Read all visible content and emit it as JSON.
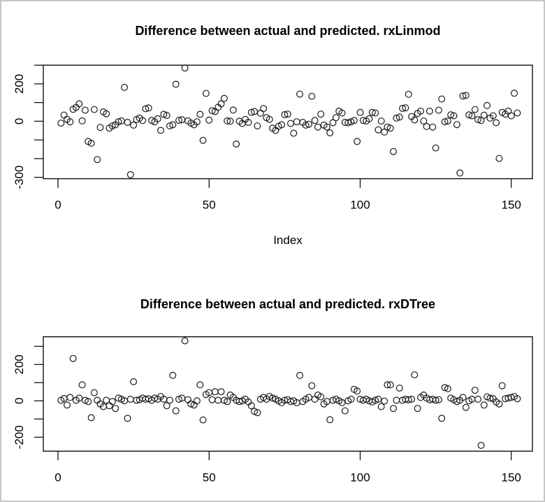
{
  "page": {
    "background_color": "#ffffff",
    "frame_border_color": "#c6c6c6",
    "plot_line_color": "#000000"
  },
  "chart_data": [
    {
      "id": "rxlinmod",
      "type": "scatter",
      "title": "Difference between actual and predicted. rxLinmod",
      "xlabel": "Index",
      "ylabel": "",
      "marker": "open-circle",
      "x_ticks": [
        0,
        50,
        100,
        150
      ],
      "x_tick_labels": [
        "0",
        "50",
        "100",
        "150"
      ],
      "y_ticks": [
        300,
        200,
        100,
        0,
        -100,
        -200,
        -300
      ],
      "y_tick_labels_shown": [
        {
          "value": 200,
          "label": "200"
        },
        {
          "value": 0,
          "label": "0"
        },
        {
          "value": -300,
          "label": "-300"
        }
      ],
      "xlim": [
        -4.9,
        157.1
      ],
      "ylim": [
        -307,
        301
      ],
      "grid": false,
      "legend": "none",
      "x": "index 1..152",
      "y_values": [
        -10,
        33,
        10,
        -3,
        64,
        74,
        93,
        2,
        59,
        -108,
        -118,
        63,
        -205,
        -33,
        50,
        40,
        -37,
        -25,
        -19,
        -3,
        2,
        181,
        -6,
        -286,
        -21,
        9,
        17,
        4,
        67,
        71,
        4,
        -3,
        13,
        -49,
        37,
        31,
        -25,
        -19,
        198,
        5,
        8,
        285,
        2,
        -10,
        -19,
        -3,
        37,
        -102,
        149,
        6,
        56,
        52,
        75,
        93,
        122,
        2,
        0,
        60,
        -122,
        0,
        -12,
        10,
        -6,
        47,
        52,
        -25,
        43,
        68,
        19,
        10,
        -37,
        -49,
        -27,
        -19,
        35,
        38,
        -12,
        -64,
        -3,
        145,
        -6,
        -21,
        -16,
        134,
        4,
        -31,
        38,
        -21,
        -31,
        -62,
        -8,
        19,
        54,
        44,
        -6,
        -8,
        -3,
        4,
        -108,
        47,
        4,
        1,
        13,
        47,
        44,
        -46,
        1,
        -58,
        -31,
        -37,
        -162,
        17,
        22,
        69,
        72,
        144,
        25,
        7,
        42,
        54,
        1,
        -28,
        54,
        -31,
        -143,
        59,
        119,
        -3,
        1,
        34,
        29,
        -18,
        -277,
        135,
        138,
        34,
        29,
        63,
        9,
        4,
        32,
        84,
        17,
        29,
        -8,
        -199,
        47,
        38,
        54,
        29,
        150,
        44
      ]
    },
    {
      "id": "rxdtree",
      "type": "scatter",
      "title": "Difference between actual and predicted. rxDTree",
      "xlabel": "",
      "ylabel": "",
      "marker": "open-circle",
      "x_ticks": [
        0,
        50,
        100,
        150
      ],
      "x_tick_labels": [
        "0",
        "50",
        "100",
        "150"
      ],
      "y_ticks": [
        300,
        200,
        100,
        0,
        -100,
        -200
      ],
      "y_tick_labels_shown": [
        {
          "value": 200,
          "label": "200"
        },
        {
          "value": 0,
          "label": "0"
        },
        {
          "value": -200,
          "label": "-200"
        }
      ],
      "xlim": [
        -4.9,
        157.1
      ],
      "ylim": [
        -277,
        352
      ],
      "grid": false,
      "legend": "none",
      "x": "index 1..152",
      "y_values": [
        3,
        13,
        -23,
        19,
        233,
        3,
        15,
        88,
        3,
        -4,
        -93,
        45,
        3,
        -17,
        -32,
        3,
        -27,
        -4,
        -42,
        15,
        9,
        0,
        -96,
        9,
        105,
        3,
        6,
        15,
        9,
        12,
        3,
        15,
        9,
        24,
        9,
        -27,
        3,
        140,
        -55,
        9,
        15,
        330,
        6,
        -17,
        -23,
        0,
        88,
        -105,
        35,
        45,
        6,
        50,
        3,
        50,
        3,
        -4,
        32,
        19,
        3,
        -4,
        0,
        9,
        -6,
        -27,
        -58,
        -65,
        9,
        19,
        9,
        24,
        15,
        9,
        0,
        -10,
        3,
        6,
        -4,
        0,
        -10,
        140,
        -4,
        9,
        19,
        83,
        9,
        32,
        22,
        -17,
        -4,
        -104,
        3,
        9,
        0,
        -10,
        -55,
        0,
        9,
        63,
        54,
        9,
        3,
        9,
        0,
        -6,
        3,
        9,
        -32,
        -1,
        88,
        88,
        -42,
        3,
        70,
        3,
        9,
        6,
        9,
        143,
        -42,
        19,
        32,
        15,
        6,
        9,
        3,
        6,
        -96,
        73,
        67,
        15,
        6,
        -4,
        3,
        19,
        -36,
        0,
        9,
        58,
        9,
        -245,
        -23,
        22,
        15,
        12,
        -6,
        -17,
        83,
        12,
        15,
        19,
        24,
        12
      ]
    }
  ]
}
